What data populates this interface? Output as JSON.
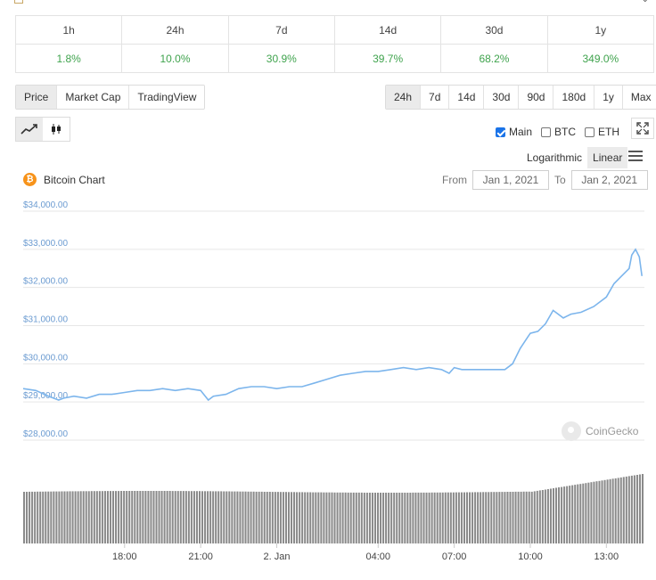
{
  "performance": {
    "periods": [
      "1h",
      "24h",
      "7d",
      "14d",
      "30d",
      "1y"
    ],
    "changes": [
      "1.8%",
      "10.0%",
      "30.9%",
      "39.7%",
      "68.2%",
      "349.0%"
    ]
  },
  "metric_tabs": [
    "Price",
    "Market Cap",
    "TradingView"
  ],
  "range_tabs": [
    "24h",
    "7d",
    "14d",
    "30d",
    "90d",
    "180d",
    "1y",
    "Max"
  ],
  "checkboxes": [
    {
      "label": "Main",
      "checked": true
    },
    {
      "label": "BTC",
      "checked": false
    },
    {
      "label": "ETH",
      "checked": false
    }
  ],
  "scale_options": [
    "Logarithmic",
    "Linear"
  ],
  "chart_title": "Bitcoin Chart",
  "date_range": {
    "from_label": "From",
    "from": "Jan 1, 2021",
    "to_label": "To",
    "to": "Jan 2, 2021"
  },
  "watermark": "CoinGecko",
  "icons": {
    "coin": "bitcoin-icon",
    "line": "line-chart-icon",
    "candle": "candlestick-icon",
    "expand": "expand-icon",
    "menu": "hamburger-menu-icon"
  },
  "colors": {
    "line": "#7cb5ec",
    "positive": "#3fa34d",
    "volume": "#8a8a8a",
    "coin": "#f7931a"
  },
  "chart_data": {
    "type": "line",
    "title": "Bitcoin Chart",
    "y_ticks": [
      "$28,000.00",
      "$29,000.00",
      "$30,000.00",
      "$31,000.00",
      "$32,000.00",
      "$33,000.00",
      "$34,000.00"
    ],
    "ylim": [
      28000,
      34000
    ],
    "x_ticks": [
      "18:00",
      "21:00",
      "2. Jan",
      "04:00",
      "07:00",
      "10:00",
      "13:00"
    ],
    "x_tick_hours": [
      18,
      21,
      24,
      28,
      31,
      34,
      37
    ],
    "xlim_hours": [
      14.0,
      38.5
    ],
    "grid": true,
    "series": [
      {
        "x_hours": [
          14.0,
          14.5,
          15.0,
          15.4,
          15.6,
          16.0,
          16.5,
          17.0,
          17.5,
          18.0,
          18.5,
          19.0,
          19.5,
          20.0,
          20.5,
          21.0,
          21.3,
          21.5,
          22.0,
          22.5,
          23.0,
          23.5,
          24.0,
          24.5,
          25.0,
          25.5,
          26.0,
          26.5,
          27.0,
          27.5,
          28.0,
          28.5,
          29.0,
          29.5,
          30.0,
          30.5,
          30.8,
          31.0,
          31.3,
          31.5,
          32.0,
          32.5,
          33.0,
          33.3,
          33.6,
          33.9,
          34.0,
          34.3,
          34.6,
          34.9,
          35.1,
          35.3,
          35.6,
          36.0,
          36.5,
          37.0,
          37.3,
          37.6,
          37.9,
          38.0,
          38.15,
          38.3,
          38.4
        ],
        "values": [
          29350,
          29300,
          29150,
          29050,
          29100,
          29150,
          29100,
          29200,
          29200,
          29250,
          29300,
          29300,
          29350,
          29300,
          29350,
          29300,
          29050,
          29150,
          29200,
          29350,
          29400,
          29400,
          29350,
          29400,
          29400,
          29500,
          29600,
          29700,
          29750,
          29800,
          29800,
          29850,
          29900,
          29850,
          29900,
          29850,
          29750,
          29900,
          29850,
          29850,
          29850,
          29850,
          29850,
          30000,
          30400,
          30700,
          30800,
          30850,
          31050,
          31400,
          31300,
          31200,
          31300,
          31350,
          31500,
          31750,
          32100,
          32300,
          32500,
          32850,
          33000,
          32800,
          32300
        ]
      }
    ],
    "volume": {
      "note": "relative volume bars",
      "start": 0.58,
      "end": 0.78
    }
  }
}
